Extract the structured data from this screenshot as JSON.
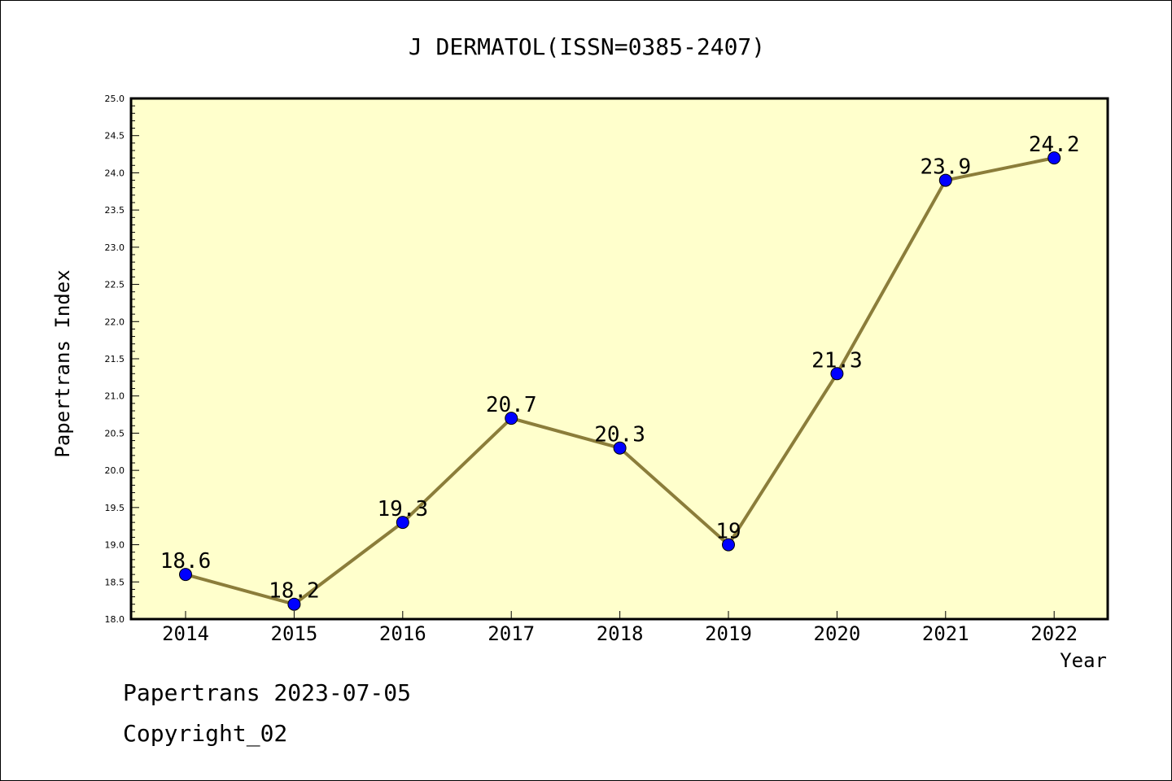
{
  "colors": {
    "plot_background": "#ffffcc",
    "line": "#8b7d3a",
    "marker": "#0000ff"
  },
  "footer": {
    "line1": "Papertrans 2023-07-05",
    "line2": "Copyright_02"
  },
  "chart_data": {
    "type": "line",
    "title": "J DERMATOL(ISSN=0385-2407)",
    "xlabel": "Year",
    "ylabel": "Papertrans Index",
    "categories": [
      "2014",
      "2015",
      "2016",
      "2017",
      "2018",
      "2019",
      "2020",
      "2021",
      "2022"
    ],
    "series": [
      {
        "values": [
          18.6,
          18.2,
          19.3,
          20.7,
          20.3,
          19.0,
          21.3,
          23.9,
          24.2
        ],
        "data_labels": [
          "18.6",
          "18.2",
          "19.3",
          "20.7",
          "20.3",
          "19",
          "21.3",
          "23.9",
          "24.2"
        ]
      }
    ],
    "ylim": [
      18.0,
      25.0
    ],
    "yticks": [
      "18.0",
      "18.5",
      "19.0",
      "19.5",
      "20.0",
      "20.5",
      "21.0",
      "21.5",
      "22.0",
      "22.5",
      "23.0",
      "23.5",
      "24.0",
      "24.5",
      "25.0"
    ],
    "grid": false,
    "legend": "none"
  }
}
